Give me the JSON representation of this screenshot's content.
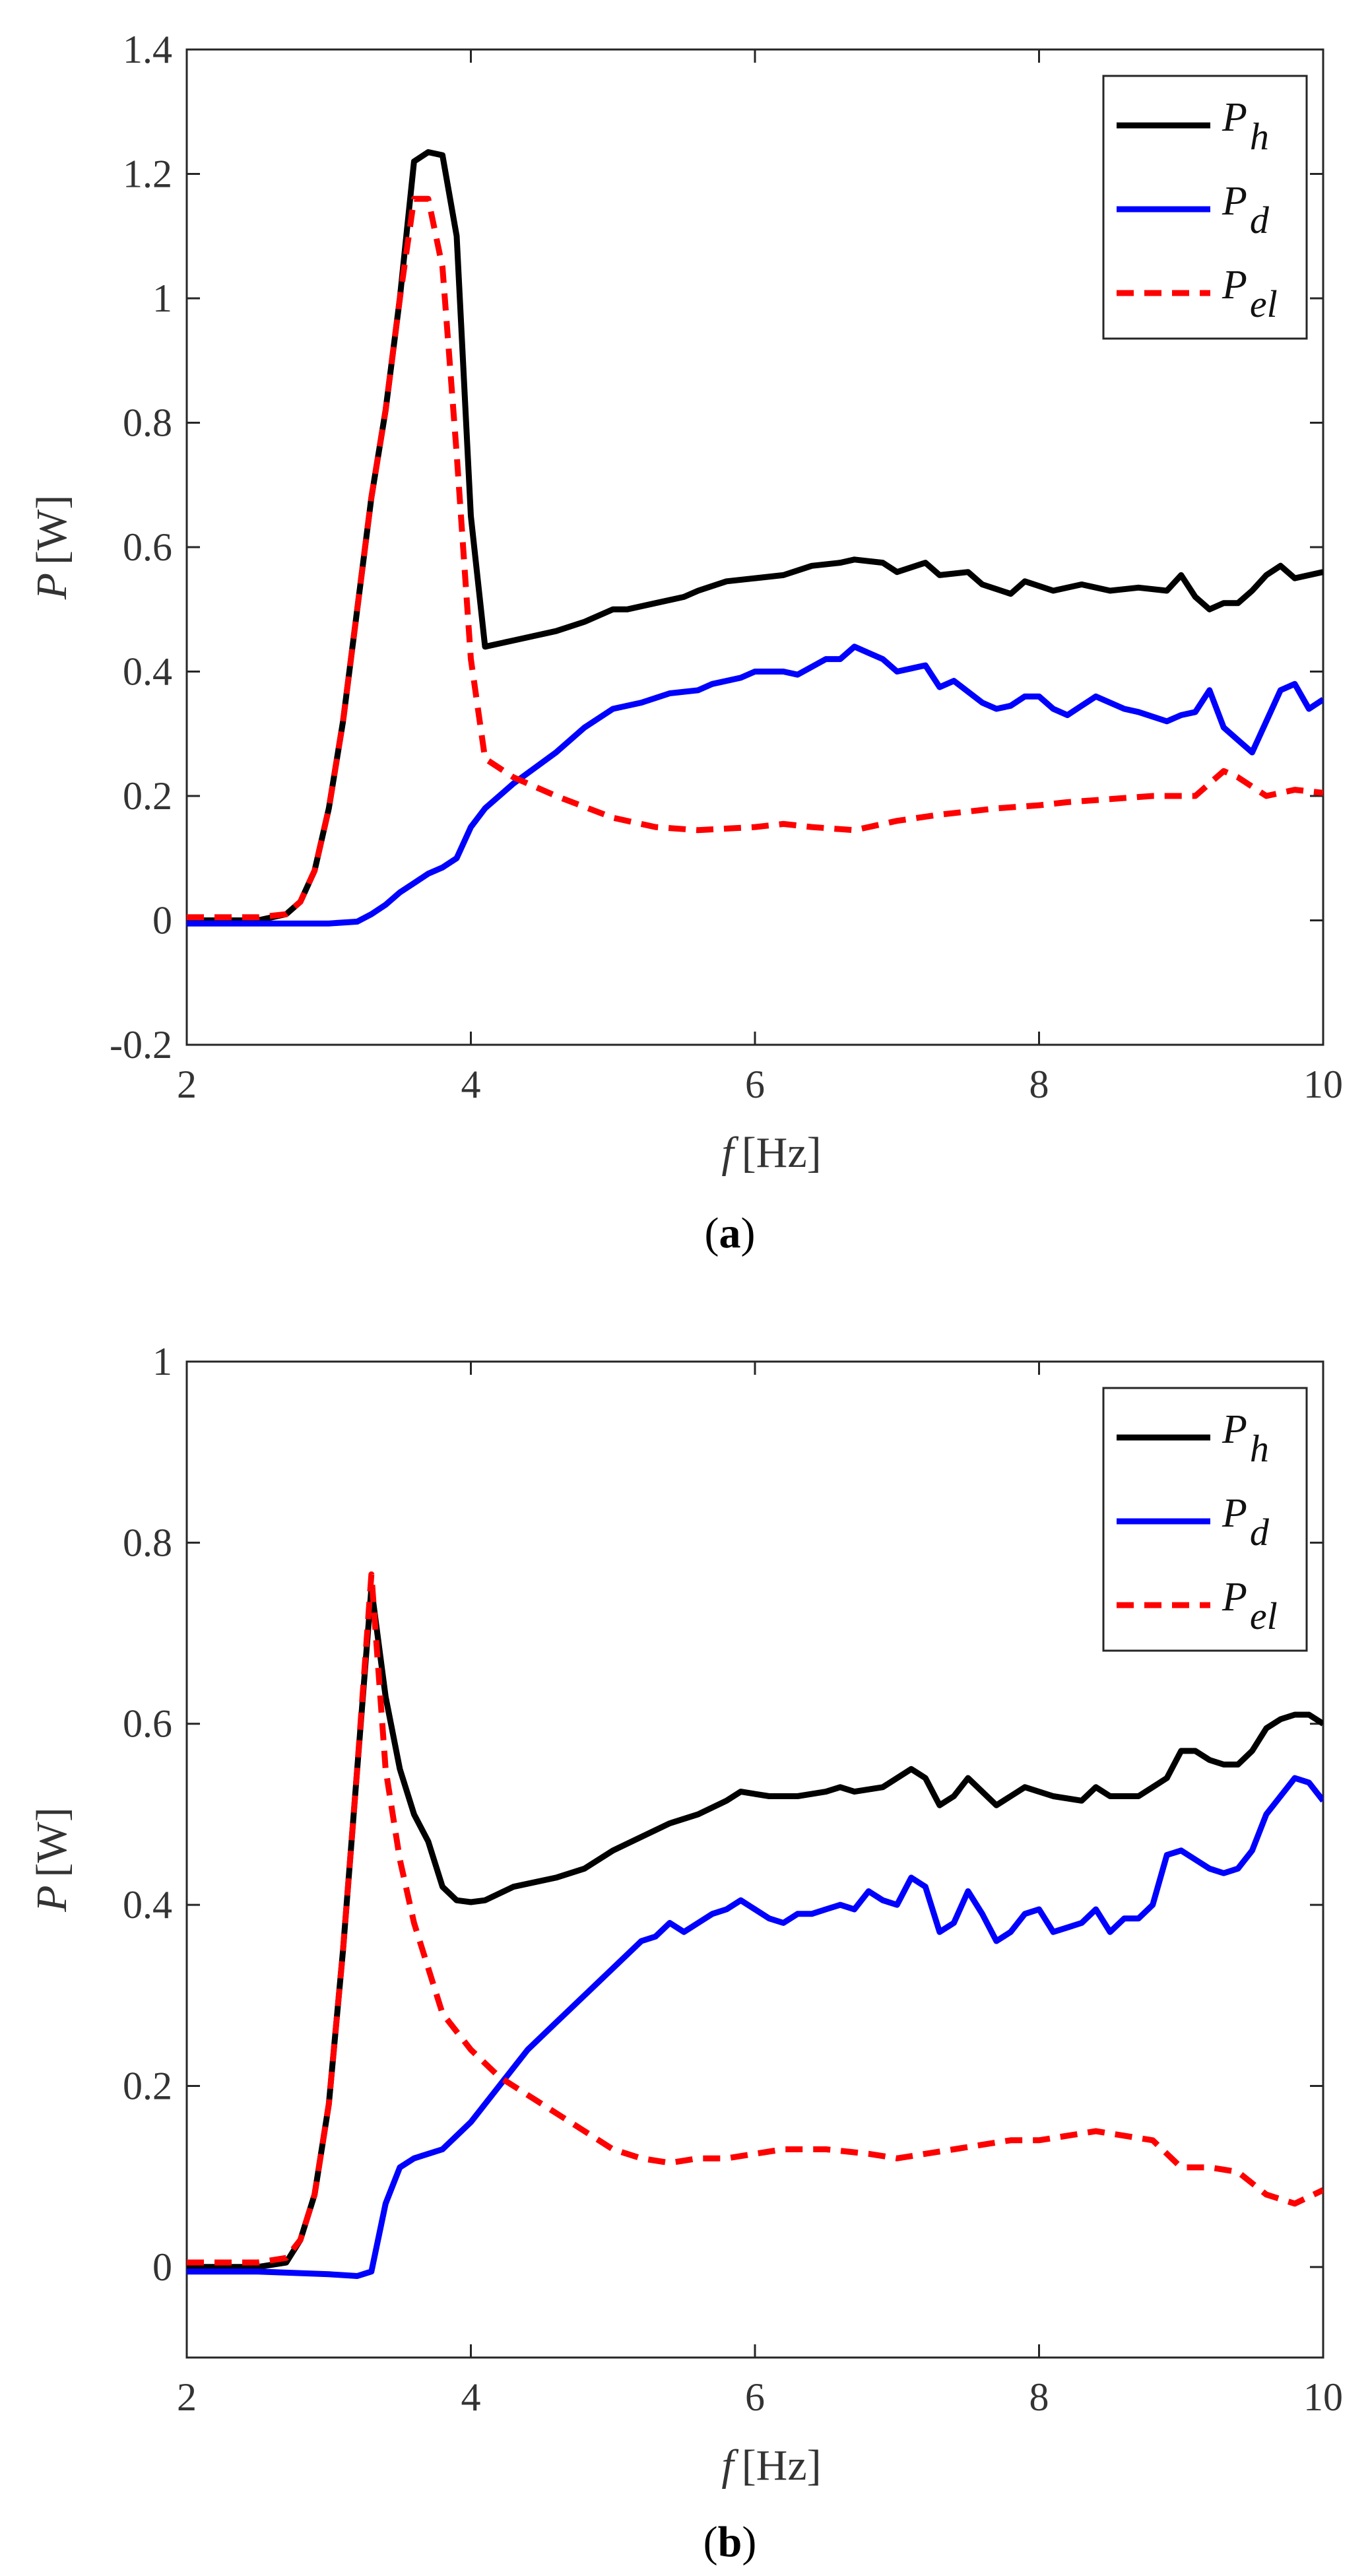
{
  "chart_data": [
    {
      "type": "line",
      "caption_letter": "a",
      "caption_open": "(",
      "caption_close": ")",
      "xlabel_var": "f",
      "xlabel_unit": "[Hz]",
      "ylabel_var": "P",
      "ylabel_unit": "[W]",
      "xlim": [
        2,
        10
      ],
      "ylim": [
        -0.2,
        1.4
      ],
      "xticks": [
        "2",
        "4",
        "6",
        "8",
        "10"
      ],
      "yticks": [
        "-0.2",
        "0",
        "0.2",
        "0.4",
        "0.6",
        "0.8",
        "1",
        "1.2",
        "1.4"
      ],
      "legend_position": "top-right",
      "series": [
        {
          "name": "P_h",
          "label_main": "P",
          "label_sub": "h",
          "color": "#000000",
          "dash": "solid",
          "x": [
            2.0,
            2.5,
            2.7,
            2.8,
            2.9,
            3.0,
            3.1,
            3.2,
            3.3,
            3.4,
            3.5,
            3.6,
            3.7,
            3.8,
            3.9,
            4.0,
            4.1,
            4.3,
            4.6,
            4.8,
            5.0,
            5.1,
            5.3,
            5.5,
            5.6,
            5.8,
            6.0,
            6.2,
            6.4,
            6.6,
            6.7,
            6.9,
            7.0,
            7.2,
            7.3,
            7.5,
            7.6,
            7.8,
            7.9,
            8.1,
            8.3,
            8.5,
            8.7,
            8.9,
            9.0,
            9.1,
            9.2,
            9.3,
            9.4,
            9.5,
            9.6,
            9.7,
            9.8,
            10.0
          ],
          "y": [
            0.0,
            0.0,
            0.01,
            0.03,
            0.08,
            0.18,
            0.32,
            0.5,
            0.68,
            0.82,
            1.0,
            1.22,
            1.235,
            1.23,
            1.1,
            0.65,
            0.44,
            0.45,
            0.465,
            0.48,
            0.5,
            0.5,
            0.51,
            0.52,
            0.53,
            0.545,
            0.55,
            0.555,
            0.57,
            0.575,
            0.58,
            0.575,
            0.56,
            0.575,
            0.555,
            0.56,
            0.54,
            0.525,
            0.545,
            0.53,
            0.54,
            0.53,
            0.535,
            0.53,
            0.555,
            0.52,
            0.5,
            0.51,
            0.51,
            0.53,
            0.555,
            0.57,
            0.55,
            0.56
          ]
        },
        {
          "name": "P_d",
          "label_main": "P",
          "label_sub": "d",
          "color": "#0000ff",
          "dash": "solid",
          "x": [
            2.0,
            2.5,
            3.0,
            3.2,
            3.3,
            3.4,
            3.5,
            3.6,
            3.7,
            3.8,
            3.9,
            4.0,
            4.1,
            4.3,
            4.6,
            4.8,
            5.0,
            5.2,
            5.4,
            5.6,
            5.7,
            5.9,
            6.0,
            6.2,
            6.3,
            6.5,
            6.6,
            6.7,
            6.8,
            6.9,
            7.0,
            7.1,
            7.2,
            7.3,
            7.4,
            7.6,
            7.7,
            7.8,
            7.9,
            8.0,
            8.1,
            8.2,
            8.3,
            8.4,
            8.5,
            8.6,
            8.7,
            8.9,
            9.0,
            9.1,
            9.2,
            9.3,
            9.4,
            9.5,
            9.6,
            9.7,
            9.8,
            9.9,
            10.0
          ],
          "y": [
            -0.005,
            -0.005,
            -0.005,
            -0.002,
            0.01,
            0.025,
            0.045,
            0.06,
            0.075,
            0.085,
            0.1,
            0.15,
            0.18,
            0.22,
            0.27,
            0.31,
            0.34,
            0.35,
            0.365,
            0.37,
            0.38,
            0.39,
            0.4,
            0.4,
            0.395,
            0.42,
            0.42,
            0.44,
            0.43,
            0.42,
            0.4,
            0.405,
            0.41,
            0.375,
            0.385,
            0.35,
            0.34,
            0.345,
            0.36,
            0.36,
            0.34,
            0.33,
            0.345,
            0.36,
            0.35,
            0.34,
            0.335,
            0.32,
            0.33,
            0.335,
            0.37,
            0.31,
            0.29,
            0.27,
            0.32,
            0.37,
            0.38,
            0.34,
            0.355
          ]
        },
        {
          "name": "P_el",
          "label_main": "P",
          "label_sub": "el",
          "color": "#ff0000",
          "dash": "dashed",
          "x": [
            2.0,
            2.5,
            2.7,
            2.8,
            2.9,
            3.0,
            3.1,
            3.2,
            3.3,
            3.4,
            3.5,
            3.6,
            3.7,
            3.8,
            3.9,
            4.0,
            4.1,
            4.3,
            4.6,
            5.0,
            5.3,
            5.6,
            6.0,
            6.2,
            6.4,
            6.7,
            7.0,
            7.3,
            7.5,
            7.7,
            8.0,
            8.2,
            8.5,
            8.8,
            9.0,
            9.1,
            9.2,
            9.3,
            9.4,
            9.6,
            9.8,
            10.0
          ],
          "y": [
            0.005,
            0.005,
            0.01,
            0.03,
            0.08,
            0.18,
            0.32,
            0.5,
            0.68,
            0.82,
            1.0,
            1.16,
            1.16,
            1.05,
            0.75,
            0.42,
            0.26,
            0.23,
            0.2,
            0.165,
            0.15,
            0.145,
            0.15,
            0.155,
            0.15,
            0.145,
            0.16,
            0.17,
            0.175,
            0.18,
            0.185,
            0.19,
            0.195,
            0.2,
            0.2,
            0.2,
            0.22,
            0.24,
            0.23,
            0.2,
            0.21,
            0.205
          ]
        }
      ]
    },
    {
      "type": "line",
      "caption_letter": "b",
      "caption_open": "(",
      "caption_close": ")",
      "xlabel_var": "f",
      "xlabel_unit": "[Hz]",
      "ylabel_var": "P",
      "ylabel_unit": "[W]",
      "xlim": [
        2,
        10
      ],
      "ylim": [
        -0.1,
        1.0
      ],
      "xticks": [
        "2",
        "4",
        "6",
        "8",
        "10"
      ],
      "yticks": [
        "0",
        "0.2",
        "0.4",
        "0.6",
        "0.8",
        "1"
      ],
      "legend_position": "top-right",
      "series": [
        {
          "name": "P_h",
          "label_main": "P",
          "label_sub": "h",
          "color": "#000000",
          "dash": "solid",
          "x": [
            2.0,
            2.5,
            2.7,
            2.8,
            2.9,
            3.0,
            3.1,
            3.2,
            3.3,
            3.4,
            3.5,
            3.6,
            3.7,
            3.8,
            3.9,
            4.0,
            4.1,
            4.3,
            4.6,
            4.8,
            5.0,
            5.2,
            5.4,
            5.6,
            5.8,
            5.9,
            6.1,
            6.3,
            6.5,
            6.6,
            6.7,
            6.9,
            7.1,
            7.2,
            7.3,
            7.4,
            7.5,
            7.6,
            7.7,
            7.8,
            7.9,
            8.1,
            8.3,
            8.4,
            8.5,
            8.7,
            8.8,
            8.9,
            9.0,
            9.1,
            9.2,
            9.3,
            9.4,
            9.5,
            9.6,
            9.7,
            9.8,
            9.9,
            10.0
          ],
          "y": [
            0.0,
            0.0,
            0.005,
            0.03,
            0.08,
            0.18,
            0.35,
            0.55,
            0.75,
            0.63,
            0.55,
            0.5,
            0.47,
            0.42,
            0.405,
            0.403,
            0.405,
            0.42,
            0.43,
            0.44,
            0.46,
            0.475,
            0.49,
            0.5,
            0.515,
            0.525,
            0.52,
            0.52,
            0.525,
            0.53,
            0.525,
            0.53,
            0.55,
            0.54,
            0.51,
            0.52,
            0.54,
            0.525,
            0.51,
            0.52,
            0.53,
            0.52,
            0.515,
            0.53,
            0.52,
            0.52,
            0.53,
            0.54,
            0.57,
            0.57,
            0.56,
            0.555,
            0.555,
            0.57,
            0.595,
            0.605,
            0.61,
            0.61,
            0.6
          ]
        },
        {
          "name": "P_d",
          "label_main": "P",
          "label_sub": "d",
          "color": "#0000ff",
          "dash": "solid",
          "x": [
            2.0,
            2.5,
            3.0,
            3.2,
            3.3,
            3.4,
            3.5,
            3.6,
            3.8,
            4.0,
            4.2,
            4.4,
            4.6,
            4.8,
            5.0,
            5.2,
            5.3,
            5.4,
            5.5,
            5.6,
            5.7,
            5.8,
            5.9,
            6.0,
            6.1,
            6.2,
            6.3,
            6.4,
            6.5,
            6.6,
            6.7,
            6.8,
            6.9,
            7.0,
            7.1,
            7.2,
            7.3,
            7.4,
            7.5,
            7.6,
            7.7,
            7.8,
            7.9,
            8.0,
            8.1,
            8.2,
            8.3,
            8.4,
            8.5,
            8.6,
            8.7,
            8.8,
            8.9,
            9.0,
            9.1,
            9.2,
            9.3,
            9.4,
            9.5,
            9.6,
            9.7,
            9.8,
            9.9,
            10.0
          ],
          "y": [
            -0.005,
            -0.005,
            -0.008,
            -0.01,
            -0.005,
            0.07,
            0.11,
            0.12,
            0.13,
            0.16,
            0.2,
            0.24,
            0.27,
            0.3,
            0.33,
            0.36,
            0.365,
            0.38,
            0.37,
            0.38,
            0.39,
            0.395,
            0.405,
            0.395,
            0.385,
            0.38,
            0.39,
            0.39,
            0.395,
            0.4,
            0.395,
            0.415,
            0.405,
            0.4,
            0.43,
            0.42,
            0.37,
            0.38,
            0.415,
            0.39,
            0.36,
            0.37,
            0.39,
            0.395,
            0.37,
            0.375,
            0.38,
            0.395,
            0.37,
            0.385,
            0.385,
            0.4,
            0.455,
            0.46,
            0.45,
            0.44,
            0.435,
            0.44,
            0.46,
            0.5,
            0.52,
            0.54,
            0.535,
            0.515
          ]
        },
        {
          "name": "P_el",
          "label_main": "P",
          "label_sub": "el",
          "color": "#ff0000",
          "dash": "dashed",
          "x": [
            2.0,
            2.5,
            2.7,
            2.8,
            2.9,
            3.0,
            3.1,
            3.2,
            3.3,
            3.4,
            3.5,
            3.6,
            3.8,
            4.0,
            4.2,
            4.5,
            4.8,
            5.0,
            5.2,
            5.4,
            5.6,
            5.8,
            6.0,
            6.2,
            6.5,
            6.8,
            7.0,
            7.2,
            7.4,
            7.6,
            7.8,
            8.0,
            8.2,
            8.4,
            8.6,
            8.8,
            9.0,
            9.2,
            9.4,
            9.6,
            9.8,
            10.0
          ],
          "y": [
            0.005,
            0.005,
            0.01,
            0.03,
            0.08,
            0.18,
            0.35,
            0.55,
            0.765,
            0.55,
            0.45,
            0.38,
            0.28,
            0.24,
            0.21,
            0.18,
            0.15,
            0.13,
            0.12,
            0.115,
            0.12,
            0.12,
            0.125,
            0.13,
            0.13,
            0.125,
            0.12,
            0.125,
            0.13,
            0.135,
            0.14,
            0.14,
            0.145,
            0.15,
            0.145,
            0.14,
            0.11,
            0.11,
            0.105,
            0.08,
            0.07,
            0.085
          ]
        }
      ]
    }
  ]
}
